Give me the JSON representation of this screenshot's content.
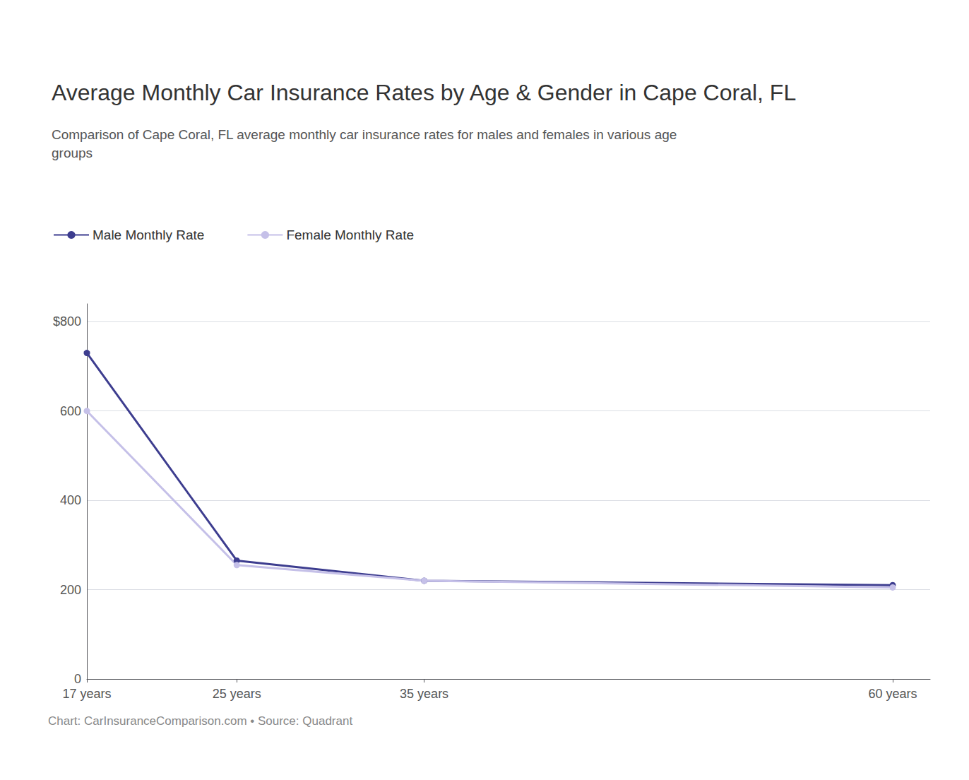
{
  "chart_data": {
    "type": "line",
    "title": "Average Monthly Car Insurance Rates by Age & Gender in Cape Coral, FL",
    "subtitle": "Comparison of Cape Coral, FL average monthly car insurance rates for males and females in various age\ngroups",
    "caption": "Chart: CarInsuranceComparison.com • Source: Quadrant",
    "x": [
      17,
      25,
      35,
      60
    ],
    "series": [
      {
        "name": "Male Monthly Rate",
        "color": "#3d3d8f",
        "marker": "circle",
        "values": [
          730,
          265,
          220,
          210
        ]
      },
      {
        "name": "Female Monthly Rate",
        "color": "#c5c0e8",
        "marker": "circle",
        "values": [
          600,
          255,
          220,
          205
        ]
      }
    ],
    "xlim": [
      17,
      62
    ],
    "xticks": [
      {
        "value": 17,
        "label": "17 years"
      },
      {
        "value": 25,
        "label": "25 years"
      },
      {
        "value": 35,
        "label": "35 years"
      },
      {
        "value": 60,
        "label": "60 years"
      }
    ],
    "ylim": [
      0,
      840
    ],
    "yticks": [
      0,
      200,
      400,
      600,
      {
        "value": 800,
        "label": "$800"
      }
    ],
    "grid": true,
    "legend": "upper left"
  }
}
